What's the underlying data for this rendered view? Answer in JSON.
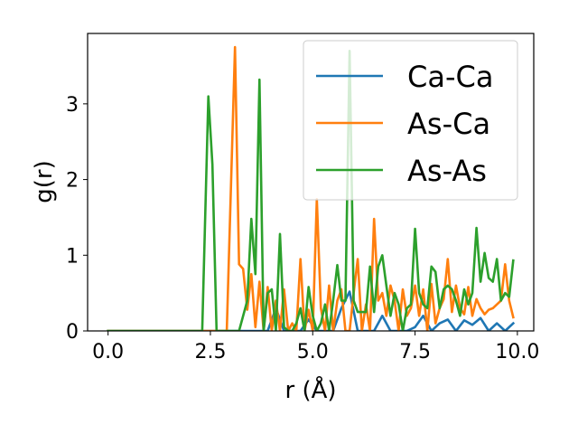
{
  "chart_data": {
    "type": "line",
    "title": "",
    "xlabel": "r (Å)",
    "ylabel": "g(r)",
    "xlim": [
      -0.5,
      10.4
    ],
    "ylim": [
      0,
      3.93
    ],
    "xticks": [
      0.0,
      2.5,
      5.0,
      7.5,
      10.0
    ],
    "xtick_labels": [
      "0.0",
      "2.5",
      "5.0",
      "7.5",
      "10.0"
    ],
    "yticks": [
      0,
      1,
      2,
      3
    ],
    "ytick_labels": [
      "0",
      "1",
      "2",
      "3"
    ],
    "grid": false,
    "legend_position": "upper-right",
    "series": [
      {
        "name": "Ca-Ca",
        "color": "#1f77b4",
        "x": [
          0.0,
          3.0,
          3.5,
          3.9,
          4.1,
          4.3,
          4.5,
          4.7,
          4.9,
          5.1,
          5.3,
          5.5,
          5.7,
          5.9,
          6.1,
          6.3,
          6.5,
          6.7,
          6.9,
          7.1,
          7.3,
          7.5,
          7.7,
          7.9,
          8.1,
          8.3,
          8.5,
          8.7,
          8.9,
          9.1,
          9.3,
          9.5,
          9.7,
          9.9
        ],
        "y": [
          0.0,
          0.0,
          0.0,
          0.0,
          0.3,
          0.0,
          0.0,
          0.0,
          0.15,
          0.0,
          0.0,
          0.0,
          0.3,
          0.52,
          0.0,
          0.0,
          0.0,
          0.2,
          0.0,
          0.0,
          0.0,
          0.05,
          0.2,
          0.0,
          0.1,
          0.15,
          0.0,
          0.14,
          0.08,
          0.17,
          0.0,
          0.1,
          0.0,
          0.1
        ]
      },
      {
        "name": "As-Ca",
        "color": "#ff7f0e",
        "x": [
          0.0,
          2.9,
          3.1,
          3.2,
          3.3,
          3.4,
          3.5,
          3.6,
          3.7,
          3.8,
          3.9,
          4.0,
          4.1,
          4.2,
          4.3,
          4.4,
          4.5,
          4.6,
          4.7,
          4.8,
          4.9,
          5.0,
          5.1,
          5.2,
          5.3,
          5.4,
          5.5,
          5.6,
          5.7,
          5.8,
          5.9,
          6.0,
          6.1,
          6.2,
          6.3,
          6.4,
          6.5,
          6.6,
          6.7,
          6.8,
          6.9,
          7.0,
          7.1,
          7.2,
          7.3,
          7.4,
          7.5,
          7.6,
          7.7,
          7.8,
          7.9,
          8.0,
          8.1,
          8.2,
          8.3,
          8.4,
          8.5,
          8.6,
          8.7,
          8.8,
          8.9,
          9.0,
          9.1,
          9.2,
          9.3,
          9.4,
          9.5,
          9.6,
          9.7,
          9.8,
          9.9
        ],
        "y": [
          0.0,
          0.0,
          3.75,
          0.88,
          0.82,
          0.28,
          0.75,
          0.05,
          0.65,
          0.0,
          0.58,
          0.0,
          0.4,
          0.0,
          0.55,
          0.0,
          0.1,
          0.0,
          0.95,
          0.0,
          0.28,
          0.0,
          1.74,
          0.3,
          0.0,
          0.6,
          0.0,
          0.4,
          0.55,
          0.0,
          0.0,
          0.5,
          0.95,
          0.0,
          0.35,
          0.0,
          1.48,
          0.4,
          0.5,
          0.2,
          0.6,
          0.4,
          0.0,
          0.55,
          0.2,
          0.3,
          0.6,
          0.2,
          0.55,
          0.0,
          0.62,
          0.1,
          0.3,
          0.42,
          0.95,
          0.25,
          0.6,
          0.3,
          0.22,
          0.58,
          0.2,
          0.42,
          0.3,
          0.22,
          0.28,
          0.3,
          0.35,
          0.4,
          0.88,
          0.4,
          0.18
        ]
      },
      {
        "name": "As-As",
        "color": "#2ca02c",
        "x": [
          0.0,
          2.3,
          2.45,
          2.55,
          2.65,
          3.2,
          3.4,
          3.5,
          3.6,
          3.7,
          3.8,
          3.9,
          4.0,
          4.1,
          4.2,
          4.3,
          4.4,
          4.5,
          4.6,
          4.7,
          4.8,
          4.9,
          5.0,
          5.1,
          5.2,
          5.3,
          5.4,
          5.5,
          5.6,
          5.7,
          5.8,
          5.9,
          6.0,
          6.1,
          6.2,
          6.3,
          6.4,
          6.5,
          6.6,
          6.7,
          6.8,
          6.9,
          7.0,
          7.1,
          7.2,
          7.3,
          7.4,
          7.5,
          7.6,
          7.7,
          7.8,
          7.9,
          8.0,
          8.1,
          8.2,
          8.3,
          8.4,
          8.5,
          8.6,
          8.7,
          8.8,
          8.9,
          9.0,
          9.1,
          9.2,
          9.3,
          9.4,
          9.5,
          9.6,
          9.7,
          9.8,
          9.9
        ],
        "y": [
          0.0,
          0.0,
          3.1,
          2.2,
          0.0,
          0.0,
          0.4,
          1.48,
          0.75,
          3.32,
          0.0,
          0.5,
          0.55,
          0.0,
          1.28,
          0.05,
          0.0,
          0.0,
          0.1,
          0.3,
          0.0,
          0.58,
          0.2,
          0.0,
          0.1,
          0.35,
          0.0,
          0.4,
          0.87,
          0.4,
          0.4,
          3.7,
          0.4,
          0.25,
          0.25,
          0.25,
          0.85,
          0.25,
          0.85,
          1.0,
          0.6,
          0.2,
          0.5,
          0.35,
          0.0,
          0.3,
          0.35,
          1.35,
          0.5,
          0.35,
          0.3,
          0.85,
          0.78,
          0.3,
          0.55,
          0.6,
          0.55,
          0.4,
          0.2,
          0.55,
          0.35,
          0.5,
          1.36,
          0.65,
          1.03,
          0.7,
          0.65,
          0.95,
          0.4,
          0.5,
          0.45,
          0.93
        ]
      }
    ]
  }
}
